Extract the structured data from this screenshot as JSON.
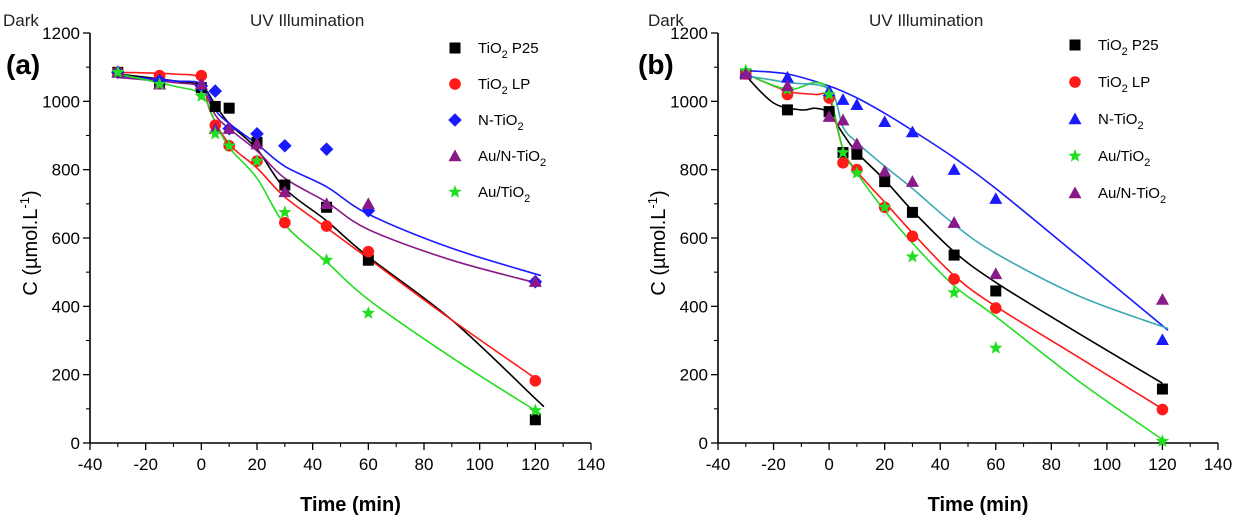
{
  "chart_data": [
    {
      "type": "scatter",
      "panel_label": "(a)",
      "region_left": "Dark",
      "region_right": "UV Illumination",
      "xlabel": "Time (min)",
      "ylabel_main": "C (µmol.L",
      "ylabel_sup": "-1",
      "ylabel_end": ")",
      "xlim": [
        -40,
        140
      ],
      "ylim": [
        0,
        1200
      ],
      "xticks": [
        -40,
        -20,
        0,
        20,
        40,
        60,
        80,
        100,
        120,
        140
      ],
      "yticks": [
        0,
        200,
        400,
        600,
        800,
        1000,
        1200
      ],
      "grid": false,
      "legend_position": "top-right",
      "series": [
        {
          "label_main": "TiO",
          "label_sub": "2",
          "label_tail": " P25",
          "color": "#000000",
          "marker": "square",
          "x": [
            -30,
            -15,
            0,
            5,
            10,
            20,
            30,
            45,
            60,
            120
          ],
          "y": [
            1085,
            1055,
            1040,
            985,
            980,
            880,
            755,
            690,
            535,
            68
          ],
          "fit": [
            [
              -30,
              1080
            ],
            [
              -10,
              1060
            ],
            [
              0,
              1045
            ],
            [
              5,
              990
            ],
            [
              10,
              935
            ],
            [
              20,
              860
            ],
            [
              30,
              745
            ],
            [
              45,
              650
            ],
            [
              60,
              545
            ],
            [
              90,
              360
            ],
            [
              120,
              130
            ],
            [
              122,
              115
            ]
          ]
        },
        {
          "label_main": "TiO",
          "label_sub": "2",
          "label_tail": " LP",
          "color": "#ff1a1a",
          "marker": "circle",
          "x": [
            -30,
            -15,
            0,
            5,
            10,
            20,
            30,
            45,
            60,
            120
          ],
          "y": [
            1085,
            1075,
            1075,
            930,
            870,
            825,
            645,
            635,
            560,
            182
          ],
          "fit": [
            [
              -30,
              1085
            ],
            [
              -10,
              1080
            ],
            [
              0,
              1065
            ],
            [
              3,
              975
            ],
            [
              10,
              875
            ],
            [
              20,
              805
            ],
            [
              30,
              720
            ],
            [
              45,
              630
            ],
            [
              60,
              540
            ],
            [
              90,
              360
            ],
            [
              122,
              178
            ]
          ]
        },
        {
          "label_main": "N-TiO",
          "label_sub": "2",
          "label_tail": "",
          "color": "#1a1aff",
          "marker": "diamond",
          "x": [
            -30,
            -15,
            0,
            5,
            10,
            20,
            30,
            45,
            60,
            120
          ],
          "y": [
            1085,
            1060,
            1045,
            1030,
            920,
            905,
            870,
            860,
            680,
            472
          ],
          "fit": [
            [
              -30,
              1075
            ],
            [
              -10,
              1060
            ],
            [
              0,
              1050
            ],
            [
              5,
              975
            ],
            [
              10,
              935
            ],
            [
              20,
              875
            ],
            [
              30,
              810
            ],
            [
              45,
              750
            ],
            [
              60,
              670
            ],
            [
              90,
              570
            ],
            [
              122,
              490
            ]
          ]
        },
        {
          "label_main": "Au/N-TiO",
          "label_sub": "2",
          "label_tail": "",
          "color": "#8a1a8a",
          "marker": "triangle",
          "x": [
            -30,
            -15,
            0,
            5,
            10,
            20,
            30,
            45,
            60,
            120
          ],
          "y": [
            1085,
            1050,
            1050,
            920,
            920,
            875,
            735,
            700,
            700,
            472
          ],
          "fit": [
            [
              -30,
              1070
            ],
            [
              -10,
              1055
            ],
            [
              0,
              1040
            ],
            [
              5,
              960
            ],
            [
              10,
              920
            ],
            [
              20,
              855
            ],
            [
              30,
              775
            ],
            [
              45,
              705
            ],
            [
              60,
              625
            ],
            [
              90,
              535
            ],
            [
              122,
              465
            ]
          ]
        },
        {
          "label_main": "Au/TiO",
          "label_sub": "2",
          "label_tail": "",
          "color": "#22dd22",
          "marker": "star",
          "x": [
            -30,
            -15,
            0,
            5,
            10,
            20,
            30,
            45,
            60,
            120
          ],
          "y": [
            1085,
            1050,
            1015,
            905,
            870,
            825,
            675,
            535,
            380,
            95
          ],
          "fit": [
            [
              -30,
              1080
            ],
            [
              -10,
              1045
            ],
            [
              0,
              1020
            ],
            [
              5,
              940
            ],
            [
              10,
              865
            ],
            [
              20,
              775
            ],
            [
              30,
              640
            ],
            [
              45,
              530
            ],
            [
              60,
              420
            ],
            [
              90,
              250
            ],
            [
              122,
              85
            ]
          ]
        }
      ]
    },
    {
      "type": "scatter",
      "panel_label": "(b)",
      "region_left": "Dark",
      "region_right": "UV Illumination",
      "xlabel": "Time (min)",
      "ylabel_main": "C (µmol.L",
      "ylabel_sup": "-1",
      "ylabel_end": ")",
      "xlim": [
        -40,
        140
      ],
      "ylim": [
        0,
        1200
      ],
      "xticks": [
        -40,
        -20,
        0,
        20,
        40,
        60,
        80,
        100,
        120,
        140
      ],
      "yticks": [
        0,
        200,
        400,
        600,
        800,
        1000,
        1200
      ],
      "grid": false,
      "legend_position": "top-right",
      "series": [
        {
          "label_main": "TiO",
          "label_sub": "2",
          "label_tail": " P25",
          "color": "#000000",
          "marker": "square",
          "x": [
            -30,
            -15,
            0,
            5,
            10,
            20,
            30,
            45,
            60,
            120
          ],
          "y": [
            1080,
            975,
            970,
            850,
            845,
            765,
            675,
            550,
            445,
            158
          ],
          "fit": [
            [
              -30,
              1075
            ],
            [
              -20,
              995
            ],
            [
              -10,
              975
            ],
            [
              -5,
              980
            ],
            [
              0,
              965
            ],
            [
              5,
              905
            ],
            [
              10,
              850
            ],
            [
              20,
              770
            ],
            [
              30,
              680
            ],
            [
              45,
              560
            ],
            [
              60,
              470
            ],
            [
              90,
              320
            ],
            [
              120,
              175
            ]
          ]
        },
        {
          "label_main": "TiO",
          "label_sub": "2",
          "label_tail": " LP",
          "color": "#ff1a1a",
          "marker": "circle",
          "x": [
            -30,
            -15,
            0,
            5,
            10,
            20,
            30,
            45,
            60,
            120
          ],
          "y": [
            1080,
            1020,
            1010,
            820,
            800,
            690,
            605,
            480,
            395,
            98
          ],
          "fit": [
            [
              -30,
              1080
            ],
            [
              -15,
              1030
            ],
            [
              -5,
              1020
            ],
            [
              0,
              1010
            ],
            [
              5,
              860
            ],
            [
              10,
              795
            ],
            [
              20,
              705
            ],
            [
              30,
              615
            ],
            [
              45,
              490
            ],
            [
              60,
              400
            ],
            [
              90,
              250
            ],
            [
              120,
              100
            ]
          ]
        },
        {
          "label_main": "N-TiO",
          "label_sub": "2",
          "label_tail": "",
          "color": "#1a1aff",
          "marker": "triangle",
          "x": [
            -30,
            -15,
            0,
            5,
            10,
            20,
            30,
            45,
            60,
            120
          ],
          "y": [
            1085,
            1070,
            1030,
            1005,
            990,
            940,
            910,
            800,
            715,
            302
          ],
          "fit": [
            [
              -30,
              1090
            ],
            [
              -15,
              1080
            ],
            [
              0,
              1045
            ],
            [
              10,
              1010
            ],
            [
              20,
              965
            ],
            [
              30,
              915
            ],
            [
              45,
              835
            ],
            [
              60,
              745
            ],
            [
              90,
              545
            ],
            [
              122,
              330
            ]
          ]
        },
        {
          "label_main": "Au/TiO",
          "label_sub": "2",
          "label_tail": "",
          "color": "#22dd22",
          "marker": "star",
          "x": [
            -30,
            -15,
            0,
            5,
            10,
            20,
            30,
            45,
            60,
            120
          ],
          "y": [
            1090,
            1035,
            1020,
            850,
            790,
            690,
            545,
            440,
            278,
            5
          ],
          "fit": [
            [
              -30,
              1080
            ],
            [
              -15,
              1035
            ],
            [
              -5,
              1055
            ],
            [
              0,
              1025
            ],
            [
              5,
              860
            ],
            [
              10,
              790
            ],
            [
              20,
              680
            ],
            [
              30,
              585
            ],
            [
              45,
              460
            ],
            [
              60,
              370
            ],
            [
              90,
              180
            ],
            [
              120,
              10
            ]
          ]
        },
        {
          "label_main": "Au/N-TiO",
          "label_sub": "2",
          "label_tail": "",
          "color": "#8a1a8a",
          "marker": "triangle",
          "x": [
            -30,
            -15,
            0,
            5,
            10,
            20,
            30,
            45,
            60,
            120
          ],
          "y": [
            1080,
            1045,
            955,
            945,
            875,
            795,
            765,
            645,
            495,
            420
          ],
          "fit": [
            [
              -30,
              1075
            ],
            [
              -15,
              1055
            ],
            [
              0,
              1035
            ],
            [
              5,
              925
            ],
            [
              10,
              880
            ],
            [
              20,
              810
            ],
            [
              30,
              745
            ],
            [
              45,
              640
            ],
            [
              60,
              555
            ],
            [
              90,
              430
            ],
            [
              122,
              335
            ]
          ],
          "fit_color": "#3aa9b3"
        }
      ]
    }
  ]
}
